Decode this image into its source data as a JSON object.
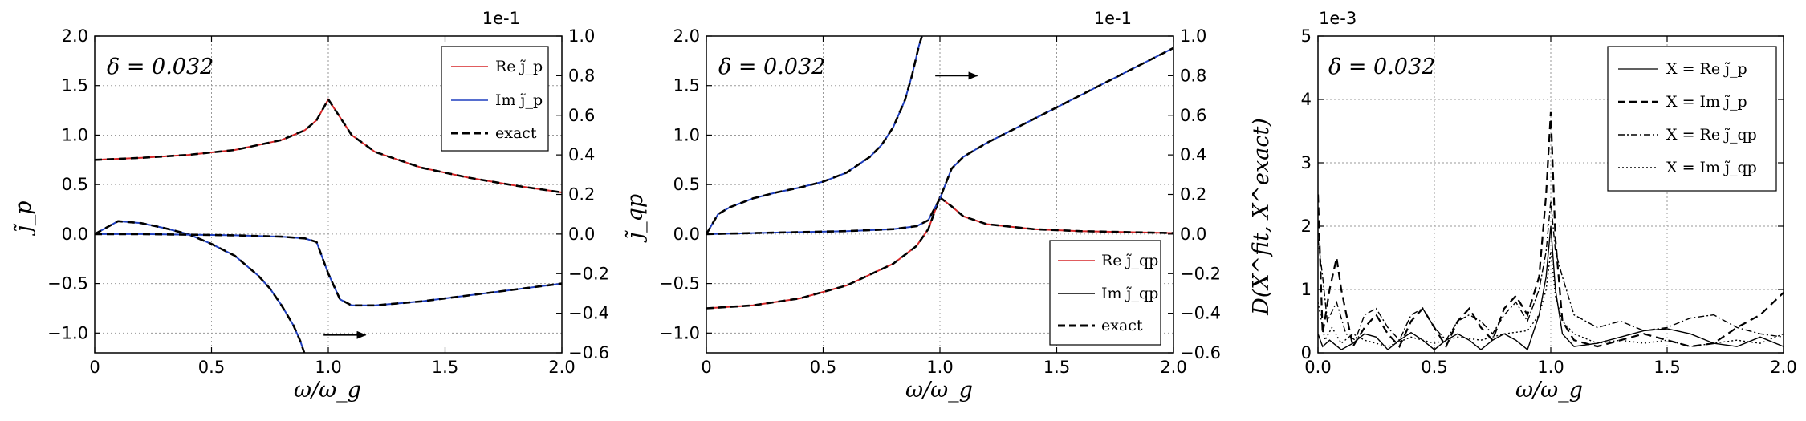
{
  "chart_data": [
    {
      "type": "line",
      "xlabel": "ω/ω_g",
      "ylabel": "j̃_p",
      "xlim": [
        0,
        2.0
      ],
      "ylim": [
        -1.2,
        2.0
      ],
      "y2lim": [
        -0.6,
        1.0
      ],
      "y2_exponent": "1e-1",
      "xticks": [
        "0",
        "0.5",
        "1.0",
        "1.5",
        "2.0"
      ],
      "yticks": [
        "−1.0",
        "−0.5",
        "0.0",
        "0.5",
        "1.0",
        "1.5",
        "2.0"
      ],
      "y2ticks": [
        "−0.6",
        "−0.4",
        "−0.2",
        "0.0",
        "0.2",
        "0.4",
        "0.6",
        "0.8",
        "1.0"
      ],
      "grid": true,
      "annotation": "δ = 0.032",
      "legend_position": "top-right",
      "legend": [
        "Re j̃_p",
        "Im j̃_p",
        "exact"
      ],
      "series": [
        {
          "name": "Re j̃_p",
          "axis": "left",
          "color": "#d62728",
          "x": [
            0,
            0.2,
            0.4,
            0.6,
            0.8,
            0.9,
            0.95,
            1.0,
            1.05,
            1.1,
            1.2,
            1.4,
            1.6,
            1.8,
            2.0
          ],
          "y": [
            0.75,
            0.77,
            0.8,
            0.85,
            0.95,
            1.05,
            1.15,
            1.36,
            1.18,
            1.0,
            0.83,
            0.67,
            0.57,
            0.49,
            0.42
          ]
        },
        {
          "name": "Im j̃_p",
          "axis": "left",
          "color": "#1f3fbf",
          "x": [
            0,
            0.1,
            0.2,
            0.3,
            0.4,
            0.5,
            0.6,
            0.7,
            0.75,
            0.8,
            0.85,
            0.88,
            0.9
          ],
          "y": [
            0.0,
            0.13,
            0.11,
            0.06,
            0.0,
            -0.1,
            -0.22,
            -0.42,
            -0.55,
            -0.72,
            -0.92,
            -1.08,
            -1.22
          ]
        },
        {
          "name": "Im j̃_p (right axis)",
          "axis": "right",
          "color": "#1f3fbf",
          "x": [
            0,
            0.2,
            0.4,
            0.6,
            0.8,
            0.9,
            0.95,
            1.0,
            1.05,
            1.1,
            1.2,
            1.4,
            1.6,
            1.8,
            2.0
          ],
          "y": [
            0.0,
            0.0,
            -0.003,
            -0.006,
            -0.013,
            -0.022,
            -0.04,
            -0.2,
            -0.33,
            -0.36,
            -0.36,
            -0.34,
            -0.31,
            -0.28,
            -0.25
          ]
        }
      ],
      "arrow": {
        "x": [
          0.98,
          1.16
        ],
        "y": -1.02
      }
    },
    {
      "type": "line",
      "xlabel": "ω/ω_g",
      "ylabel": "j̃_qp",
      "xlim": [
        0,
        2.0
      ],
      "ylim": [
        -1.2,
        2.0
      ],
      "y2lim": [
        -0.6,
        1.0
      ],
      "y2_exponent": "1e-1",
      "xticks": [
        "0",
        "0.5",
        "1.0",
        "1.5",
        "2.0"
      ],
      "yticks": [
        "−1.0",
        "−0.5",
        "0.0",
        "0.5",
        "1.0",
        "1.5",
        "2.0"
      ],
      "y2ticks": [
        "−0.6",
        "−0.4",
        "−0.2",
        "0.0",
        "0.2",
        "0.4",
        "0.6",
        "0.8",
        "1.0"
      ],
      "grid": true,
      "annotation": "δ = 0.032",
      "legend_position": "bottom-right",
      "legend": [
        "Re j̃_qp",
        "Im j̃_qp",
        "exact"
      ],
      "series": [
        {
          "name": "Re j̃_qp",
          "axis": "left",
          "color": "#d62728",
          "x": [
            0,
            0.2,
            0.4,
            0.6,
            0.8,
            0.9,
            0.95,
            1.0,
            1.05,
            1.1,
            1.2,
            1.4,
            1.6,
            1.8,
            2.0
          ],
          "y": [
            -0.75,
            -0.72,
            -0.65,
            -0.52,
            -0.3,
            -0.12,
            0.05,
            0.37,
            0.28,
            0.18,
            0.1,
            0.05,
            0.03,
            0.02,
            0.01
          ]
        },
        {
          "name": "Im j̃_qp",
          "axis": "left",
          "color": "#1f3fbf",
          "x": [
            0,
            0.05,
            0.1,
            0.2,
            0.3,
            0.4,
            0.5,
            0.6,
            0.7,
            0.75,
            0.8,
            0.85,
            0.88,
            0.91,
            0.93
          ],
          "y": [
            0.0,
            0.2,
            0.27,
            0.36,
            0.42,
            0.47,
            0.53,
            0.62,
            0.78,
            0.9,
            1.08,
            1.35,
            1.6,
            1.9,
            2.05
          ]
        },
        {
          "name": "Im j̃_qp (right axis)",
          "axis": "right",
          "color": "#1f3fbf",
          "x": [
            0,
            0.2,
            0.4,
            0.6,
            0.8,
            0.9,
            0.95,
            1.0,
            1.05,
            1.1,
            1.2,
            1.4,
            1.6,
            1.8,
            2.0
          ],
          "y": [
            0.0,
            0.005,
            0.01,
            0.015,
            0.025,
            0.04,
            0.07,
            0.18,
            0.33,
            0.39,
            0.46,
            0.58,
            0.7,
            0.82,
            0.94
          ]
        }
      ],
      "arrow": {
        "x": [
          0.98,
          1.16
        ],
        "y": 1.6
      }
    },
    {
      "type": "line",
      "xlabel": "ω/ω_g",
      "ylabel": "D(X^fit, X^exact)",
      "xlim": [
        0,
        2.0
      ],
      "ylim": [
        0,
        5
      ],
      "y_exponent": "1e-3",
      "xticks": [
        "0.0",
        "0.5",
        "1.0",
        "1.5",
        "2.0"
      ],
      "yticks": [
        "0",
        "1",
        "2",
        "3",
        "4",
        "5"
      ],
      "grid": true,
      "annotation": "δ = 0.032",
      "legend_position": "top-right",
      "legend": [
        "X = Re j̃_p",
        "X = Im j̃_p",
        "X = Re j̃_qp",
        "X = Im j̃_qp"
      ],
      "series": [
        {
          "name": "X = Re j̃_p",
          "dash": "solid",
          "x": [
            0,
            0.02,
            0.05,
            0.1,
            0.15,
            0.2,
            0.25,
            0.3,
            0.35,
            0.4,
            0.45,
            0.5,
            0.55,
            0.6,
            0.65,
            0.7,
            0.75,
            0.8,
            0.85,
            0.9,
            0.95,
            0.98,
            1.0,
            1.02,
            1.05,
            1.1,
            1.2,
            1.3,
            1.4,
            1.5,
            1.6,
            1.7,
            1.8,
            1.9,
            2.0
          ],
          "y": [
            0.3,
            0.1,
            0.2,
            0.05,
            0.15,
            0.3,
            0.25,
            0.05,
            0.2,
            0.32,
            0.2,
            0.05,
            0.2,
            0.3,
            0.2,
            0.05,
            0.2,
            0.3,
            0.2,
            0.05,
            0.6,
            1.2,
            2.0,
            1.0,
            0.3,
            0.1,
            0.15,
            0.25,
            0.35,
            0.38,
            0.3,
            0.15,
            0.1,
            0.25,
            0.1
          ]
        },
        {
          "name": "X = Im j̃_p",
          "dash": "dashed",
          "x": [
            0,
            0.02,
            0.05,
            0.08,
            0.1,
            0.15,
            0.2,
            0.25,
            0.3,
            0.35,
            0.4,
            0.45,
            0.5,
            0.55,
            0.6,
            0.65,
            0.7,
            0.75,
            0.8,
            0.85,
            0.9,
            0.95,
            0.98,
            1.0,
            1.02,
            1.05,
            1.1,
            1.2,
            1.3,
            1.4,
            1.5,
            1.6,
            1.7,
            1.8,
            1.9,
            2.0
          ],
          "y": [
            2.5,
            0.3,
            1.0,
            1.5,
            1.0,
            0.1,
            0.4,
            0.6,
            0.3,
            0.1,
            0.5,
            0.7,
            0.4,
            0.1,
            0.5,
            0.7,
            0.4,
            0.2,
            0.7,
            0.9,
            0.6,
            1.2,
            2.5,
            3.8,
            1.8,
            0.5,
            0.2,
            0.1,
            0.2,
            0.3,
            0.2,
            0.1,
            0.15,
            0.4,
            0.6,
            0.95
          ]
        },
        {
          "name": "X = Re j̃_qp",
          "dash": "dashdot",
          "x": [
            0,
            0.02,
            0.04,
            0.08,
            0.12,
            0.16,
            0.2,
            0.25,
            0.3,
            0.35,
            0.4,
            0.45,
            0.5,
            0.55,
            0.6,
            0.65,
            0.7,
            0.75,
            0.8,
            0.85,
            0.9,
            0.95,
            0.98,
            1.0,
            1.02,
            1.05,
            1.1,
            1.2,
            1.3,
            1.4,
            1.5,
            1.6,
            1.7,
            1.8,
            1.9,
            2.0
          ],
          "y": [
            1.8,
            1.2,
            0.5,
            0.8,
            0.3,
            0.2,
            0.6,
            0.7,
            0.4,
            0.2,
            0.6,
            0.7,
            0.4,
            0.2,
            0.5,
            0.6,
            0.5,
            0.3,
            0.6,
            0.8,
            0.5,
            1.0,
            1.6,
            2.4,
            1.6,
            1.2,
            0.6,
            0.4,
            0.5,
            0.35,
            0.4,
            0.55,
            0.6,
            0.4,
            0.3,
            0.25
          ]
        },
        {
          "name": "X = Im j̃_qp",
          "dash": "dotted",
          "x": [
            0,
            0.03,
            0.06,
            0.1,
            0.15,
            0.2,
            0.3,
            0.4,
            0.5,
            0.6,
            0.7,
            0.8,
            0.9,
            0.95,
            0.98,
            1.0,
            1.02,
            1.05,
            1.1,
            1.2,
            1.3,
            1.4,
            1.5,
            1.6,
            1.7,
            1.8,
            1.9,
            2.0
          ],
          "y": [
            0.8,
            0.2,
            0.4,
            0.15,
            0.3,
            0.2,
            0.1,
            0.25,
            0.15,
            0.25,
            0.2,
            0.3,
            0.35,
            0.6,
            1.0,
            1.6,
            0.9,
            0.5,
            0.3,
            0.15,
            0.2,
            0.15,
            0.2,
            0.1,
            0.15,
            0.2,
            0.15,
            0.3
          ]
        }
      ]
    }
  ]
}
